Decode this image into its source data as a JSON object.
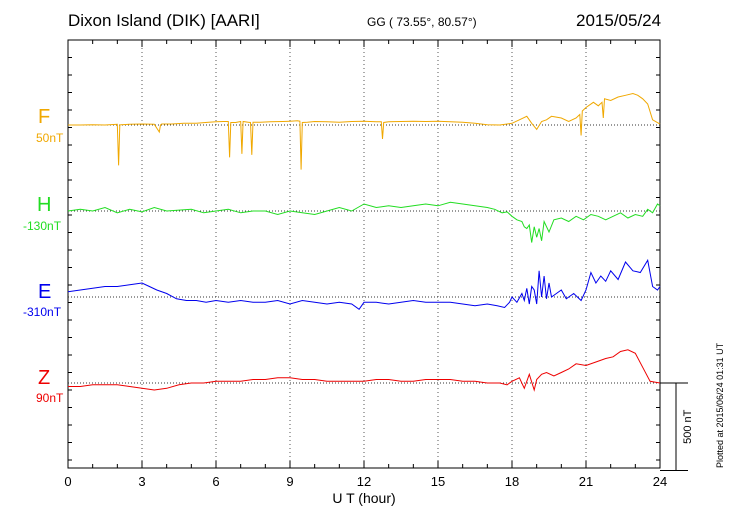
{
  "header": {
    "station": "Dixon Island (DIK)  [AARI]",
    "geo": "GG ( 73.55°,  80.57°)",
    "date": "2015/05/24"
  },
  "plotted_at": "Plotted at 2015/06/24 01:31  UT",
  "chart_data": {
    "type": "line",
    "xlabel": "U T (hour)",
    "xlim": [
      0,
      24
    ],
    "xticks": [
      "0",
      "3",
      "6",
      "9",
      "12",
      "15",
      "18",
      "21",
      "24"
    ],
    "grid": true,
    "scale_bar": {
      "label": "500 nT",
      "value_nT": 500
    },
    "series": [
      {
        "name": "F",
        "baseline_label": "50nT",
        "color": "#f0a800",
        "x": [
          0,
          0.5,
          1,
          1.5,
          2,
          2.05,
          2.1,
          2.15,
          2.5,
          3,
          3.5,
          3.7,
          3.75,
          3.8,
          4.2,
          4.7,
          5.2,
          5.7,
          6,
          6.3,
          6.5,
          6.55,
          6.6,
          6.8,
          7,
          7.05,
          7.1,
          7.3,
          7.4,
          7.45,
          7.5,
          7.8,
          8.2,
          8.7,
          9,
          9.3,
          9.4,
          9.45,
          9.5,
          9.7,
          10,
          10.5,
          11,
          11.5,
          12,
          12.5,
          12.7,
          12.75,
          12.8,
          13,
          13.5,
          14,
          14.5,
          15,
          15.5,
          16,
          16.5,
          17,
          17.5,
          17.8,
          18,
          18.3,
          18.6,
          18.8,
          19,
          19.2,
          19.4,
          19.6,
          20,
          20.3,
          20.6,
          20.75,
          20.8,
          20.85,
          21,
          21.3,
          21.5,
          21.65,
          21.7,
          21.75,
          22,
          22.3,
          22.6,
          22.9,
          23.1,
          23.3,
          23.5,
          23.7,
          24
        ],
        "y": [
          0,
          0,
          2,
          0,
          4,
          -230,
          0,
          2,
          4,
          6,
          4,
          -40,
          0,
          6,
          6,
          10,
          10,
          16,
          18,
          20,
          20,
          -185,
          14,
          14,
          20,
          -165,
          20,
          16,
          14,
          -170,
          16,
          16,
          18,
          20,
          22,
          24,
          22,
          -255,
          14,
          16,
          20,
          18,
          16,
          20,
          22,
          18,
          18,
          -80,
          14,
          18,
          20,
          22,
          20,
          22,
          18,
          16,
          10,
          2,
          0,
          6,
          10,
          30,
          50,
          10,
          -25,
          20,
          30,
          50,
          40,
          20,
          40,
          60,
          -60,
          80,
          100,
          130,
          110,
          130,
          40,
          150,
          140,
          160,
          170,
          180,
          170,
          150,
          120,
          30,
          5
        ]
      },
      {
        "name": "H",
        "baseline_label": "-130nT",
        "color": "#22dd22",
        "x": [
          0,
          0.5,
          1,
          1.5,
          2,
          2.5,
          3,
          3.5,
          4,
          4.5,
          5,
          5.5,
          6,
          6.5,
          7,
          7.5,
          8,
          8.5,
          9,
          9.5,
          10,
          10.5,
          11,
          11.5,
          12,
          12.5,
          13,
          13.5,
          14,
          14.5,
          15,
          15.5,
          16,
          16.5,
          17,
          17.3,
          17.6,
          17.8,
          18,
          18.2,
          18.4,
          18.5,
          18.6,
          18.7,
          18.8,
          18.9,
          19,
          19.1,
          19.2,
          19.3,
          19.5,
          19.7,
          20,
          20.3,
          20.6,
          20.9,
          21.2,
          21.5,
          21.8,
          22.1,
          22.4,
          22.7,
          23,
          23.3,
          23.5,
          23.7,
          23.9,
          24
        ],
        "y": [
          0,
          10,
          0,
          20,
          -10,
          10,
          -5,
          20,
          0,
          5,
          10,
          -10,
          0,
          10,
          -10,
          0,
          0,
          -20,
          0,
          -10,
          -20,
          0,
          20,
          0,
          40,
          20,
          30,
          20,
          30,
          40,
          30,
          50,
          40,
          30,
          20,
          10,
          -10,
          -5,
          -30,
          -50,
          -60,
          -90,
          -100,
          -80,
          -180,
          -90,
          -150,
          -100,
          -170,
          -60,
          -120,
          -50,
          -40,
          -60,
          -30,
          -50,
          -20,
          -30,
          -50,
          -30,
          -10,
          -40,
          -20,
          -30,
          10,
          -10,
          40,
          30
        ]
      },
      {
        "name": "E",
        "baseline_label": "-310nT",
        "color": "#0000ee",
        "x": [
          0,
          0.5,
          1,
          1.5,
          2,
          2.5,
          3,
          3.3,
          3.6,
          4,
          4.4,
          4.8,
          5.2,
          5.6,
          6,
          6.5,
          7,
          7.5,
          8,
          8.5,
          9,
          9.5,
          10,
          10.5,
          11,
          11.5,
          11.8,
          12,
          12.5,
          13,
          13.5,
          14,
          14.5,
          15,
          15.5,
          16,
          16.5,
          17,
          17.4,
          17.7,
          17.9,
          18,
          18.2,
          18.4,
          18.5,
          18.6,
          18.7,
          18.8,
          18.9,
          19,
          19.1,
          19.2,
          19.3,
          19.4,
          19.5,
          19.6,
          19.8,
          20,
          20.2,
          20.5,
          20.8,
          21,
          21.2,
          21.4,
          21.6,
          21.8,
          22,
          22.3,
          22.6,
          22.9,
          23.2,
          23.5,
          23.7,
          23.9,
          24
        ],
        "y": [
          30,
          40,
          50,
          60,
          60,
          70,
          80,
          60,
          40,
          20,
          -10,
          -20,
          -20,
          -30,
          -20,
          -30,
          -20,
          -30,
          -30,
          -20,
          -40,
          -20,
          -30,
          -40,
          -30,
          -40,
          -70,
          -30,
          -30,
          -40,
          -30,
          -20,
          -30,
          -30,
          -30,
          -40,
          -50,
          -40,
          -50,
          -60,
          -30,
          0,
          -30,
          20,
          -20,
          50,
          -40,
          60,
          40,
          -40,
          150,
          0,
          120,
          -10,
          80,
          0,
          20,
          40,
          -10,
          20,
          -20,
          40,
          140,
          80,
          120,
          90,
          150,
          100,
          200,
          150,
          140,
          210,
          60,
          40,
          60
        ]
      },
      {
        "name": "Z",
        "baseline_label": "90nT",
        "color": "#ee0000",
        "x": [
          0,
          0.5,
          1,
          1.5,
          2,
          2.5,
          3,
          3.5,
          4,
          4.5,
          5,
          5.5,
          6,
          6.5,
          7,
          7.5,
          8,
          8.5,
          9,
          9.5,
          10,
          10.5,
          11,
          11.5,
          12,
          12.5,
          13,
          13.5,
          14,
          14.5,
          15,
          15.5,
          16,
          16.5,
          17,
          17.5,
          17.8,
          18,
          18.3,
          18.5,
          18.7,
          18.9,
          19,
          19.2,
          19.4,
          19.7,
          20,
          20.3,
          20.6,
          21,
          21.4,
          21.8,
          22.1,
          22.4,
          22.7,
          23,
          23.3,
          23.6,
          24
        ],
        "y": [
          -20,
          -20,
          -10,
          -10,
          -10,
          -20,
          -30,
          -40,
          -30,
          -10,
          0,
          0,
          10,
          10,
          10,
          20,
          20,
          30,
          30,
          20,
          20,
          10,
          10,
          10,
          10,
          20,
          20,
          10,
          10,
          20,
          20,
          20,
          10,
          10,
          0,
          0,
          -10,
          10,
          30,
          -30,
          50,
          -40,
          20,
          50,
          60,
          40,
          60,
          80,
          110,
          100,
          120,
          140,
          150,
          180,
          190,
          170,
          90,
          10,
          0
        ]
      }
    ]
  }
}
